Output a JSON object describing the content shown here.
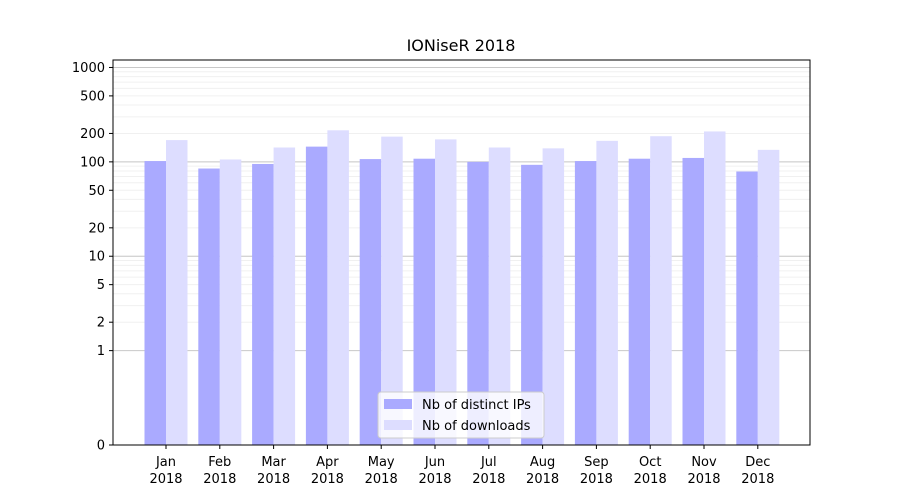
{
  "chart_data": {
    "type": "bar",
    "title": "IONiseR 2018",
    "xlabel": "",
    "ylabel": "",
    "yscale": "symlog",
    "ylim": [
      0,
      1200
    ],
    "yticks": [
      0,
      1,
      2,
      5,
      10,
      20,
      50,
      100,
      200,
      500,
      1000
    ],
    "grid": true,
    "legend_position": "lower-center",
    "categories": [
      [
        "Jan",
        "2018"
      ],
      [
        "Feb",
        "2018"
      ],
      [
        "Mar",
        "2018"
      ],
      [
        "Apr",
        "2018"
      ],
      [
        "May",
        "2018"
      ],
      [
        "Jun",
        "2018"
      ],
      [
        "Jul",
        "2018"
      ],
      [
        "Aug",
        "2018"
      ],
      [
        "Sep",
        "2018"
      ],
      [
        "Oct",
        "2018"
      ],
      [
        "Nov",
        "2018"
      ],
      [
        "Dec",
        "2018"
      ]
    ],
    "series": [
      {
        "name": "Nb of distinct IPs",
        "color": "#aaaaff",
        "values": [
          102,
          85,
          95,
          145,
          107,
          108,
          100,
          93,
          102,
          108,
          110,
          79
        ]
      },
      {
        "name": "Nb of downloads",
        "color": "#ddddff",
        "values": [
          170,
          106,
          142,
          216,
          185,
          173,
          142,
          139,
          167,
          187,
          210,
          134
        ]
      }
    ]
  }
}
